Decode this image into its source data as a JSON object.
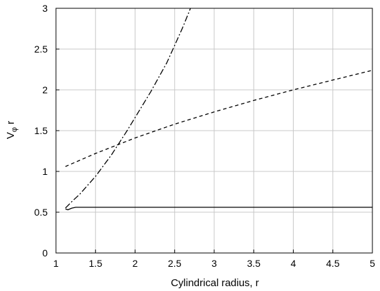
{
  "chart_data": {
    "type": "line",
    "title": "",
    "xlabel": "Cylindrical radius, r",
    "ylabel_main": "V",
    "ylabel_sub": "φ",
    "ylabel_tail": " r",
    "xlim": [
      1,
      5
    ],
    "ylim": [
      0,
      3
    ],
    "grid": true,
    "legend": "none",
    "x_ticks": [
      1,
      1.5,
      2,
      2.5,
      3,
      3.5,
      4,
      4.5,
      5
    ],
    "x_tick_labels": [
      "1",
      "1.5",
      "2",
      "2.5",
      "3",
      "3.5",
      "4",
      "4.5",
      "5"
    ],
    "y_ticks": [
      0,
      0.5,
      1,
      1.5,
      2,
      2.5,
      3
    ],
    "y_tick_labels": [
      "0",
      "0.5",
      "1",
      "1.5",
      "2",
      "2.5",
      "3"
    ],
    "series": [
      {
        "style": "solid",
        "x": [
          1.12,
          1.15,
          1.2,
          1.25,
          1.3,
          1.5,
          2,
          3,
          4,
          5
        ],
        "y": [
          0.54,
          0.53,
          0.55,
          0.56,
          0.56,
          0.56,
          0.56,
          0.56,
          0.56,
          0.56
        ]
      },
      {
        "style": "dashed",
        "x": [
          1.12,
          1.5,
          2,
          2.5,
          3,
          3.5,
          4,
          4.5,
          5
        ],
        "y": [
          1.06,
          1.22,
          1.41,
          1.58,
          1.73,
          1.87,
          2.0,
          2.12,
          2.24
        ]
      },
      {
        "style": "dashdot",
        "x": [
          1.12,
          1.2,
          1.3,
          1.5,
          1.7,
          1.9,
          2.0,
          2.2,
          2.4,
          2.6,
          2.7
        ],
        "y": [
          0.55,
          0.63,
          0.72,
          0.94,
          1.2,
          1.5,
          1.66,
          1.98,
          2.33,
          2.76,
          3.0
        ]
      }
    ]
  }
}
